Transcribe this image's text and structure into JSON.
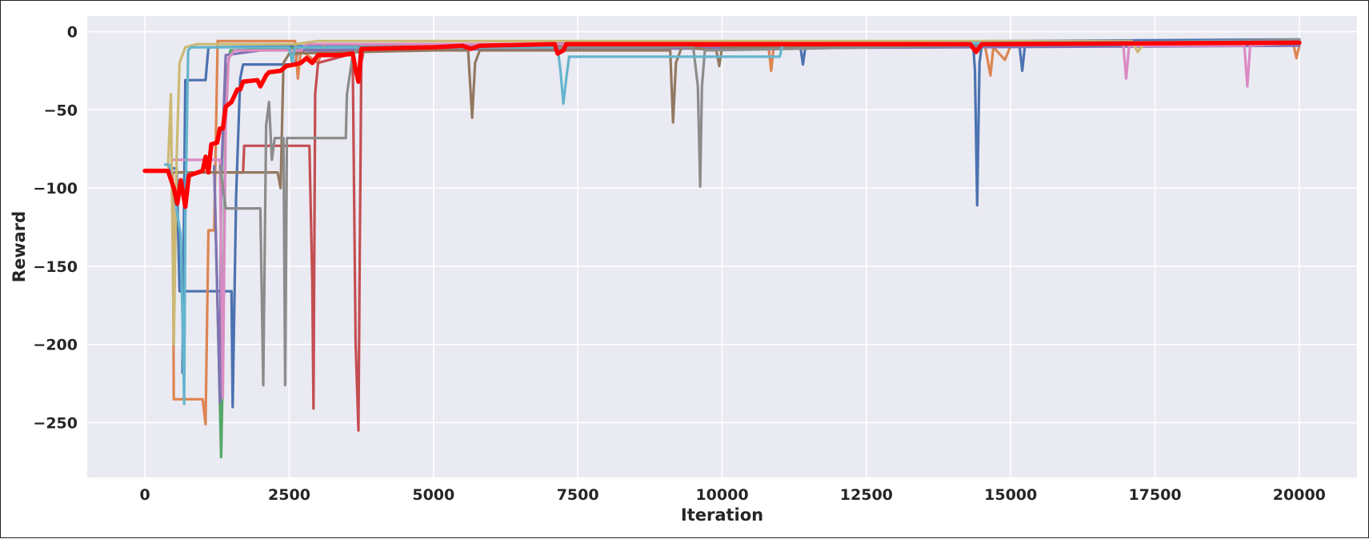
{
  "chart_data": {
    "type": "line",
    "title": "",
    "xlabel": "Iteration",
    "ylabel": "Reward",
    "xlim": [
      -1000,
      21000
    ],
    "ylim": [
      -285,
      10
    ],
    "xticks": [
      0,
      2500,
      5000,
      7500,
      10000,
      12500,
      15000,
      17500,
      20000
    ],
    "yticks": [
      0,
      -50,
      -100,
      -150,
      -200,
      -250
    ],
    "grid": true,
    "legend": "none",
    "background": "#eaeaf2",
    "series": [
      {
        "color": "#4c72b0",
        "width": 3.2,
        "points": [
          [
            400,
            -86
          ],
          [
            550,
            -88
          ],
          [
            600,
            -166
          ],
          [
            1500,
            -166
          ],
          [
            1520,
            -240
          ],
          [
            1580,
            -105
          ],
          [
            1650,
            -30
          ],
          [
            1700,
            -21
          ],
          [
            2600,
            -21
          ],
          [
            2650,
            -12
          ],
          [
            5000,
            -11
          ],
          [
            7000,
            -8
          ],
          [
            11350,
            -8
          ],
          [
            11400,
            -21
          ],
          [
            11450,
            -8
          ],
          [
            14350,
            -8
          ],
          [
            14380,
            -25
          ],
          [
            14420,
            -111
          ],
          [
            14460,
            -20
          ],
          [
            14500,
            -8
          ],
          [
            15150,
            -8
          ],
          [
            15200,
            -25
          ],
          [
            15250,
            -8
          ],
          [
            20000,
            -6
          ]
        ]
      },
      {
        "color": "#4c72b0",
        "width": 3.2,
        "points": [
          [
            650,
            -218
          ],
          [
            700,
            -31
          ],
          [
            1050,
            -31
          ],
          [
            1100,
            -10
          ],
          [
            6000,
            -8
          ],
          [
            20000,
            -5
          ]
        ]
      },
      {
        "color": "#dd8452",
        "width": 3.2,
        "points": [
          [
            400,
            -86
          ],
          [
            480,
            -90
          ],
          [
            500,
            -235
          ],
          [
            1000,
            -235
          ],
          [
            1050,
            -251
          ],
          [
            1100,
            -127
          ],
          [
            1200,
            -127
          ],
          [
            1260,
            -6
          ],
          [
            2600,
            -6
          ],
          [
            2650,
            -30
          ],
          [
            2700,
            -12
          ],
          [
            3000,
            -20
          ],
          [
            3100,
            -8
          ],
          [
            10800,
            -8
          ],
          [
            10850,
            -25
          ],
          [
            10900,
            -8
          ],
          [
            14550,
            -8
          ],
          [
            14650,
            -28
          ],
          [
            14700,
            -10
          ],
          [
            14900,
            -18
          ],
          [
            15000,
            -9
          ],
          [
            19900,
            -8
          ],
          [
            19950,
            -17
          ],
          [
            20000,
            -9
          ]
        ]
      },
      {
        "color": "#55a868",
        "width": 3.2,
        "points": [
          [
            1200,
            -86
          ],
          [
            1300,
            -240
          ],
          [
            1320,
            -272
          ],
          [
            1350,
            -215
          ],
          [
            1400,
            -30
          ],
          [
            1480,
            -12
          ],
          [
            3000,
            -10
          ],
          [
            20000,
            -7
          ]
        ]
      },
      {
        "color": "#c44e52",
        "width": 3.2,
        "points": [
          [
            1600,
            -90
          ],
          [
            1700,
            -90
          ],
          [
            1720,
            -73
          ],
          [
            2850,
            -73
          ],
          [
            2900,
            -160
          ],
          [
            2920,
            -241
          ],
          [
            2950,
            -40
          ],
          [
            3000,
            -20
          ],
          [
            3500,
            -15
          ],
          [
            3600,
            -15
          ],
          [
            3650,
            -198
          ],
          [
            3700,
            -255
          ],
          [
            3720,
            -150
          ],
          [
            3750,
            -20
          ],
          [
            3800,
            -10
          ],
          [
            20000,
            -8
          ]
        ]
      },
      {
        "color": "#8172b3",
        "width": 3.2,
        "points": [
          [
            1200,
            -86
          ],
          [
            1300,
            -237
          ],
          [
            1320,
            -95
          ],
          [
            1400,
            -15
          ],
          [
            2000,
            -12
          ],
          [
            20000,
            -9
          ]
        ]
      },
      {
        "color": "#937860",
        "width": 3.2,
        "points": [
          [
            400,
            -90
          ],
          [
            2300,
            -90
          ],
          [
            2350,
            -100
          ],
          [
            2400,
            -20
          ],
          [
            2500,
            -14
          ],
          [
            5000,
            -12
          ],
          [
            5600,
            -12
          ],
          [
            5670,
            -55
          ],
          [
            5720,
            -20
          ],
          [
            5800,
            -12
          ],
          [
            9100,
            -12
          ],
          [
            9150,
            -58
          ],
          [
            9200,
            -20
          ],
          [
            9300,
            -10
          ],
          [
            9900,
            -12
          ],
          [
            9950,
            -22
          ],
          [
            10000,
            -10
          ],
          [
            20000,
            -7
          ]
        ]
      },
      {
        "color": "#da8bc3",
        "width": 3.2,
        "points": [
          [
            500,
            -82
          ],
          [
            1300,
            -82
          ],
          [
            1350,
            -234
          ],
          [
            1400,
            -60
          ],
          [
            1450,
            -17
          ],
          [
            1550,
            -12
          ],
          [
            2700,
            -12
          ],
          [
            2800,
            -8
          ],
          [
            16950,
            -8
          ],
          [
            17000,
            -30
          ],
          [
            17050,
            -9
          ],
          [
            19050,
            -9
          ],
          [
            19100,
            -35
          ],
          [
            19150,
            -9
          ],
          [
            20000,
            -7
          ]
        ]
      },
      {
        "color": "#8c8c8c",
        "width": 3.2,
        "points": [
          [
            1300,
            -86
          ],
          [
            1400,
            -113
          ],
          [
            2000,
            -113
          ],
          [
            2050,
            -226
          ],
          [
            2100,
            -60
          ],
          [
            2150,
            -45
          ],
          [
            2200,
            -82
          ],
          [
            2250,
            -68
          ],
          [
            2400,
            -68
          ],
          [
            2430,
            -226
          ],
          [
            2460,
            -68
          ],
          [
            3480,
            -68
          ],
          [
            3500,
            -40
          ],
          [
            3600,
            -15
          ],
          [
            3700,
            -10
          ],
          [
            9500,
            -10
          ],
          [
            9580,
            -35
          ],
          [
            9620,
            -99
          ],
          [
            9650,
            -35
          ],
          [
            9700,
            -12
          ],
          [
            20000,
            -5
          ]
        ]
      },
      {
        "color": "#ccb974",
        "width": 3.2,
        "points": [
          [
            400,
            -86
          ],
          [
            450,
            -40
          ],
          [
            500,
            -200
          ],
          [
            550,
            -80
          ],
          [
            600,
            -20
          ],
          [
            700,
            -10
          ],
          [
            900,
            -8
          ],
          [
            2600,
            -8
          ],
          [
            3000,
            -6
          ],
          [
            17100,
            -6
          ],
          [
            17200,
            -13
          ],
          [
            17300,
            -8
          ],
          [
            20000,
            -6
          ]
        ]
      },
      {
        "color": "#64b5cd",
        "width": 3.2,
        "points": [
          [
            350,
            -85
          ],
          [
            420,
            -85
          ],
          [
            620,
            -130
          ],
          [
            680,
            -238
          ],
          [
            700,
            -120
          ],
          [
            750,
            -12
          ],
          [
            800,
            -10
          ],
          [
            2500,
            -10
          ],
          [
            2550,
            -20
          ],
          [
            2600,
            -10
          ],
          [
            7150,
            -10
          ],
          [
            7200,
            -25
          ],
          [
            7250,
            -46
          ],
          [
            7300,
            -30
          ],
          [
            7350,
            -16
          ],
          [
            11000,
            -16
          ],
          [
            11050,
            -8
          ],
          [
            20000,
            -6
          ]
        ]
      },
      {
        "color": "#ff0000",
        "width": 5.5,
        "points": [
          [
            0,
            -89
          ],
          [
            400,
            -89
          ],
          [
            500,
            -100
          ],
          [
            560,
            -110
          ],
          [
            620,
            -95
          ],
          [
            700,
            -112
          ],
          [
            760,
            -92
          ],
          [
            1000,
            -89
          ],
          [
            1050,
            -80
          ],
          [
            1100,
            -90
          ],
          [
            1150,
            -72
          ],
          [
            1250,
            -71
          ],
          [
            1300,
            -62
          ],
          [
            1350,
            -62
          ],
          [
            1400,
            -48
          ],
          [
            1500,
            -45
          ],
          [
            1600,
            -37
          ],
          [
            1650,
            -37
          ],
          [
            1700,
            -32
          ],
          [
            1950,
            -31
          ],
          [
            2000,
            -35
          ],
          [
            2100,
            -28
          ],
          [
            2150,
            -26
          ],
          [
            2350,
            -25
          ],
          [
            2450,
            -22
          ],
          [
            2600,
            -21
          ],
          [
            2700,
            -20
          ],
          [
            2800,
            -17
          ],
          [
            2900,
            -20
          ],
          [
            3000,
            -15
          ],
          [
            3400,
            -15
          ],
          [
            3600,
            -14
          ],
          [
            3650,
            -24
          ],
          [
            3700,
            -32
          ],
          [
            3750,
            -11
          ],
          [
            5000,
            -10
          ],
          [
            5500,
            -9
          ],
          [
            5650,
            -11
          ],
          [
            5800,
            -9
          ],
          [
            7100,
            -8
          ],
          [
            7150,
            -14
          ],
          [
            7250,
            -12
          ],
          [
            7300,
            -8
          ],
          [
            10000,
            -8
          ],
          [
            14300,
            -8
          ],
          [
            14400,
            -13
          ],
          [
            14500,
            -8
          ],
          [
            20000,
            -7
          ]
        ]
      }
    ]
  }
}
